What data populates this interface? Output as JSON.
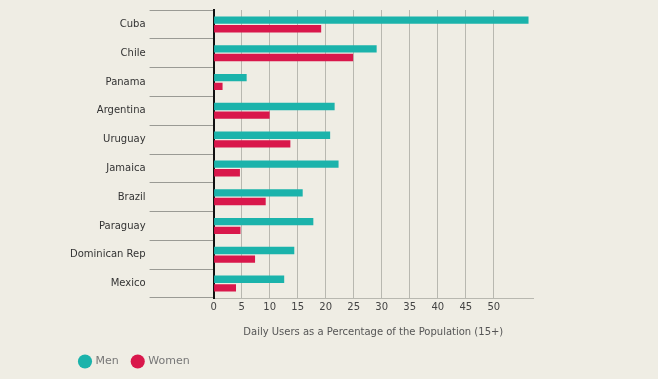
{
  "chart_data": {
    "type": "bar",
    "orientation": "horizontal",
    "xlabel": "Daily Users as a Percentage of the Population (15+)",
    "categories": [
      "Cuba",
      "Chile",
      "Panama",
      "Argentina",
      "Uruguay",
      "Jamaica",
      "Brazil",
      "Paraguay",
      "Dominican Rep",
      "Mexico"
    ],
    "series": [
      {
        "name": "Men",
        "color": "#1bb3ab",
        "values": [
          56.2,
          29.1,
          5.9,
          21.6,
          20.8,
          22.3,
          15.9,
          17.8,
          14.4,
          12.6
        ]
      },
      {
        "name": "Women",
        "color": "#d9174b",
        "values": [
          19.2,
          24.9,
          1.6,
          10.0,
          13.7,
          4.7,
          9.3,
          4.8,
          7.4,
          4.0
        ]
      }
    ],
    "xlim": [
      0,
      57
    ],
    "xticks": [
      0,
      5,
      10,
      15,
      20,
      25,
      30,
      35,
      40,
      45,
      50
    ],
    "grid": true,
    "legend": "bottom-left"
  }
}
